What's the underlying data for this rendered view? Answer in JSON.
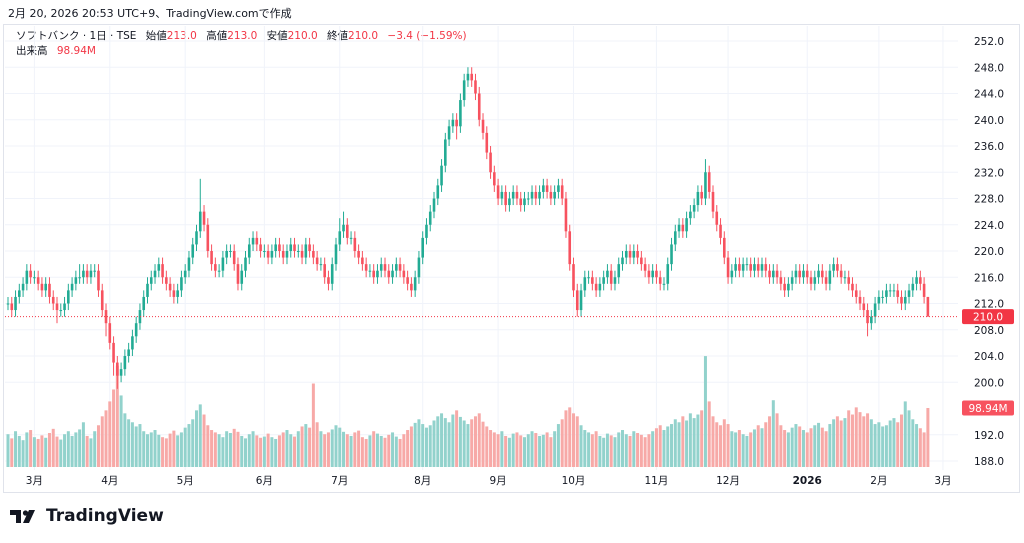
{
  "caption": "2月 20, 2026 20:53 UTC+9、TradingView.comで作成",
  "legend": {
    "symbol": "ソフトバンク · 1日 · TSE",
    "open_label": "始値",
    "open": "213.0",
    "high_label": "高値",
    "high": "213.0",
    "low_label": "安値",
    "low": "210.0",
    "close_label": "終値",
    "close": "210.0",
    "change": "−3.4 (−1.59%)",
    "volume_label": "出来高",
    "volume": "98.94M"
  },
  "footer": {
    "brand": "TradingView"
  },
  "colors": {
    "up": "#22ab94",
    "down": "#f7525f",
    "up_volume": "#92d2cc",
    "down_volume": "#f7a9a7",
    "last_price": "#f23645"
  },
  "chart_data": {
    "type": "candlestick",
    "title": "ソフトバンク · 1日 · TSE",
    "ylim": [
      188,
      252
    ],
    "y_ticks": [
      "252.0",
      "248.0",
      "244.0",
      "240.0",
      "236.0",
      "232.0",
      "228.0",
      "224.0",
      "220.0",
      "216.0",
      "212.0",
      "208.0",
      "204.0",
      "200.0",
      "192.0",
      "188.0"
    ],
    "x_ticks": [
      {
        "label": "3月",
        "index": 7
      },
      {
        "label": "4月",
        "index": 27
      },
      {
        "label": "5月",
        "index": 47
      },
      {
        "label": "6月",
        "index": 68
      },
      {
        "label": "7月",
        "index": 88
      },
      {
        "label": "8月",
        "index": 110
      },
      {
        "label": "9月",
        "index": 130
      },
      {
        "label": "10月",
        "index": 150
      },
      {
        "label": "11月",
        "index": 172
      },
      {
        "label": "12月",
        "index": 191
      },
      {
        "label": "2026",
        "index": 212
      },
      {
        "label": "2月",
        "index": 231
      },
      {
        "label": "3月",
        "index": 248
      }
    ],
    "last_price_label": "210.0",
    "last_volume_label": "98.94M",
    "volume_unit": "M",
    "close": [
      212,
      211,
      213,
      214,
      215,
      217,
      216,
      216,
      215,
      214,
      215,
      213,
      212,
      211,
      211,
      212,
      214,
      215,
      216,
      216,
      217,
      216,
      217,
      217,
      214,
      211,
      209,
      206,
      203,
      201,
      202,
      204,
      205,
      207,
      209,
      211,
      213,
      215,
      216,
      217,
      218,
      216,
      215,
      214,
      213,
      214,
      216,
      217,
      219,
      221,
      223,
      226,
      224,
      220,
      218,
      217,
      217,
      219,
      220,
      220,
      218,
      215,
      217,
      219,
      221,
      222,
      221,
      220,
      220,
      219,
      220,
      221,
      220,
      219,
      220,
      221,
      220,
      220,
      219,
      221,
      220,
      219,
      218,
      218,
      216,
      215,
      218,
      221,
      223,
      224,
      222,
      222,
      220,
      219,
      218,
      217,
      217,
      216,
      217,
      218,
      217,
      216,
      217,
      218,
      217,
      216,
      215,
      214,
      216,
      219,
      222,
      224,
      226,
      228,
      230,
      233,
      237,
      239,
      240,
      239,
      243,
      246,
      247,
      246,
      244,
      240,
      238,
      235,
      232,
      230,
      228,
      229,
      227,
      228,
      229,
      228,
      227,
      228,
      228,
      229,
      228,
      229,
      230,
      229,
      228,
      229,
      230,
      228,
      223,
      218,
      214,
      211,
      214,
      216,
      216,
      215,
      214,
      215,
      216,
      217,
      215,
      216,
      218,
      219,
      220,
      219,
      220,
      219,
      218,
      217,
      216,
      217,
      216,
      215,
      215,
      218,
      221,
      223,
      224,
      223,
      225,
      226,
      227,
      229,
      228,
      232,
      229,
      226,
      224,
      222,
      219,
      216,
      217,
      218,
      217,
      218,
      218,
      217,
      218,
      217,
      218,
      217,
      216,
      217,
      216,
      215,
      214,
      215,
      216,
      217,
      216,
      217,
      216,
      215,
      216,
      217,
      216,
      215,
      217,
      218,
      217,
      216,
      216,
      215,
      214,
      213,
      212,
      211,
      209,
      210,
      212,
      213,
      213,
      214,
      214,
      214,
      213,
      212,
      213,
      214,
      215,
      216,
      215,
      213,
      210
    ],
    "high": [
      213,
      213,
      214,
      215,
      216,
      218,
      218,
      217,
      217,
      216,
      216,
      216,
      214,
      213,
      212,
      213,
      215,
      216,
      217,
      218,
      218,
      218,
      218,
      218,
      218,
      215,
      212,
      210,
      207,
      204,
      203,
      205,
      206,
      208,
      210,
      212,
      214,
      216,
      217,
      218,
      219,
      219,
      217,
      216,
      215,
      215,
      217,
      218,
      220,
      222,
      224,
      231,
      227,
      225,
      221,
      219,
      218,
      220,
      221,
      221,
      221,
      219,
      218,
      220,
      222,
      223,
      223,
      222,
      221,
      221,
      221,
      222,
      222,
      221,
      221,
      222,
      222,
      221,
      221,
      222,
      222,
      221,
      220,
      219,
      219,
      217,
      219,
      222,
      225,
      226,
      225,
      223,
      223,
      221,
      220,
      219,
      218,
      218,
      218,
      219,
      219,
      218,
      218,
      219,
      219,
      218,
      217,
      216,
      217,
      220,
      223,
      225,
      227,
      229,
      231,
      234,
      238,
      240,
      241,
      241,
      244,
      247,
      248,
      248,
      247,
      245,
      241,
      239,
      236,
      233,
      231,
      230,
      230,
      229,
      230,
      230,
      229,
      229,
      229,
      230,
      230,
      230,
      231,
      231,
      230,
      230,
      231,
      231,
      229,
      224,
      219,
      215,
      215,
      217,
      217,
      217,
      216,
      216,
      217,
      218,
      218,
      217,
      219,
      220,
      221,
      221,
      221,
      221,
      220,
      219,
      218,
      218,
      218,
      217,
      216,
      219,
      222,
      224,
      225,
      225,
      226,
      227,
      228,
      230,
      230,
      234,
      233,
      230,
      227,
      225,
      223,
      220,
      218,
      219,
      219,
      219,
      219,
      219,
      219,
      219,
      219,
      219,
      218,
      218,
      218,
      217,
      216,
      216,
      217,
      218,
      218,
      218,
      218,
      217,
      217,
      218,
      218,
      217,
      218,
      219,
      219,
      218,
      217,
      217,
      216,
      215,
      214,
      213,
      212,
      211,
      213,
      214,
      214,
      215,
      215,
      215,
      215,
      214,
      214,
      215,
      216,
      217,
      217,
      216,
      213
    ],
    "low": [
      211,
      210,
      210,
      212,
      213,
      214,
      215,
      215,
      214,
      213,
      213,
      212,
      211,
      209,
      210,
      210,
      211,
      213,
      214,
      215,
      215,
      215,
      215,
      216,
      213,
      210,
      207,
      205,
      201,
      199,
      200,
      201,
      203,
      204,
      206,
      208,
      210,
      212,
      214,
      215,
      216,
      215,
      214,
      213,
      212,
      212,
      213,
      215,
      216,
      218,
      220,
      222,
      223,
      219,
      217,
      216,
      216,
      216,
      218,
      219,
      217,
      214,
      214,
      216,
      218,
      220,
      220,
      219,
      219,
      218,
      218,
      219,
      219,
      218,
      218,
      219,
      219,
      219,
      218,
      218,
      219,
      218,
      217,
      217,
      215,
      214,
      214,
      217,
      220,
      222,
      221,
      221,
      219,
      218,
      217,
      216,
      216,
      215,
      215,
      216,
      216,
      215,
      215,
      216,
      216,
      215,
      214,
      213,
      213,
      215,
      218,
      221,
      223,
      225,
      227,
      229,
      232,
      236,
      238,
      237,
      238,
      242,
      245,
      245,
      243,
      239,
      237,
      234,
      231,
      229,
      227,
      227,
      226,
      226,
      227,
      227,
      226,
      226,
      227,
      227,
      227,
      227,
      228,
      228,
      227,
      227,
      228,
      227,
      222,
      217,
      213,
      210,
      210,
      213,
      215,
      214,
      213,
      213,
      214,
      215,
      214,
      214,
      215,
      217,
      218,
      218,
      218,
      218,
      217,
      216,
      215,
      215,
      215,
      214,
      214,
      214,
      217,
      220,
      222,
      222,
      222,
      224,
      225,
      226,
      227,
      227,
      228,
      225,
      223,
      221,
      218,
      215,
      215,
      216,
      216,
      216,
      217,
      216,
      216,
      216,
      216,
      216,
      215,
      215,
      215,
      214,
      213,
      213,
      214,
      215,
      215,
      215,
      215,
      214,
      214,
      215,
      215,
      214,
      214,
      216,
      216,
      215,
      215,
      214,
      213,
      212,
      211,
      210,
      207,
      208,
      209,
      211,
      212,
      212,
      213,
      213,
      212,
      211,
      211,
      212,
      213,
      214,
      214,
      212,
      210
    ],
    "volume": [
      55,
      48,
      60,
      52,
      45,
      58,
      62,
      50,
      47,
      53,
      49,
      57,
      64,
      51,
      46,
      55,
      60,
      52,
      58,
      63,
      75,
      52,
      48,
      60,
      70,
      85,
      95,
      110,
      130,
      170,
      120,
      90,
      80,
      75,
      68,
      72,
      60,
      55,
      58,
      62,
      54,
      50,
      48,
      56,
      61,
      53,
      58,
      66,
      72,
      80,
      95,
      105,
      88,
      70,
      62,
      58,
      55,
      50,
      60,
      57,
      64,
      59,
      52,
      48,
      55,
      60,
      53,
      49,
      51,
      56,
      50,
      47,
      53,
      58,
      62,
      55,
      51,
      60,
      68,
      72,
      66,
      140,
      75,
      60,
      55,
      58,
      63,
      70,
      66,
      59,
      55,
      52,
      58,
      61,
      50,
      47,
      53,
      60,
      56,
      52,
      49,
      54,
      58,
      51,
      47,
      55,
      62,
      68,
      74,
      80,
      72,
      66,
      70,
      78,
      85,
      90,
      82,
      75,
      88,
      95,
      84,
      78,
      72,
      80,
      85,
      90,
      76,
      68,
      62,
      58,
      55,
      60,
      52,
      49,
      56,
      58,
      53,
      50,
      55,
      60,
      57,
      52,
      54,
      58,
      50,
      60,
      72,
      80,
      95,
      100,
      90,
      85,
      70,
      62,
      58,
      55,
      60,
      52,
      49,
      56,
      53,
      50,
      58,
      62,
      55,
      52,
      60,
      57,
      54,
      50,
      55,
      60,
      65,
      70,
      62,
      68,
      72,
      80,
      75,
      85,
      78,
      90,
      82,
      88,
      95,
      186,
      110,
      85,
      75,
      70,
      80,
      72,
      60,
      58,
      62,
      55,
      52,
      58,
      63,
      70,
      65,
      75,
      85,
      112,
      90,
      70,
      62,
      58,
      66,
      72,
      68,
      62,
      58,
      65,
      70,
      74,
      66,
      60,
      72,
      80,
      85,
      78,
      82,
      95,
      88,
      100,
      92,
      85,
      90,
      80,
      72,
      75,
      68,
      70,
      78,
      82,
      75,
      88,
      110,
      95,
      80,
      72,
      65,
      58,
      98.94
    ]
  }
}
